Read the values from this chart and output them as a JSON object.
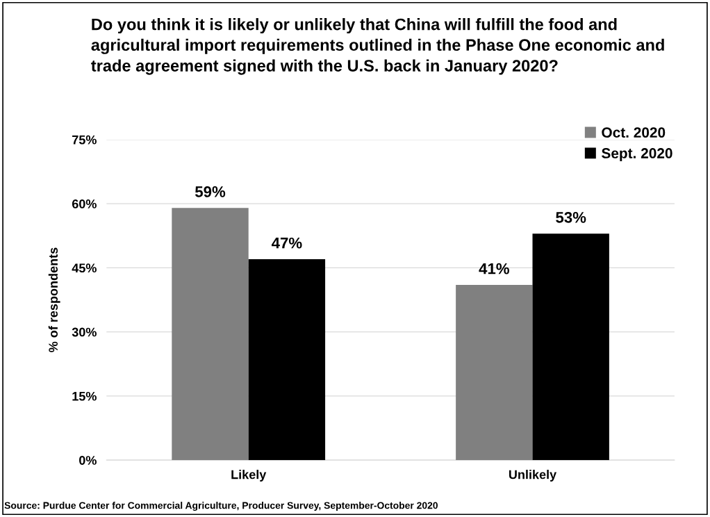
{
  "chart_data": {
    "type": "bar",
    "title": "Do you think it is likely or unlikely that China will fulfill the food and agricultural import requirements outlined in the Phase One economic and trade agreement signed with the U.S. back in January 2020?",
    "ylabel": "% of respondents",
    "categories": [
      "Likely",
      "Unlikely"
    ],
    "series": [
      {
        "name": "Oct. 2020",
        "color": "#808080",
        "values": [
          59,
          41
        ],
        "value_labels": [
          "59%",
          "41%"
        ]
      },
      {
        "name": "Sept. 2020",
        "color": "#000000",
        "values": [
          47,
          53
        ],
        "value_labels": [
          "47%",
          "53%"
        ]
      }
    ],
    "ylim": [
      0,
      75
    ],
    "yticks": [
      {
        "value": 0,
        "label": "0%"
      },
      {
        "value": 15,
        "label": "15%"
      },
      {
        "value": 30,
        "label": "30%"
      },
      {
        "value": 45,
        "label": "45%"
      },
      {
        "value": 60,
        "label": "60%"
      },
      {
        "value": 75,
        "label": "75%"
      }
    ],
    "grid": "y",
    "legend": "top right",
    "annotations": [
      "Source: Purdue Center for Commercial Agriculture, Producer Survey, September-October 2020"
    ]
  }
}
